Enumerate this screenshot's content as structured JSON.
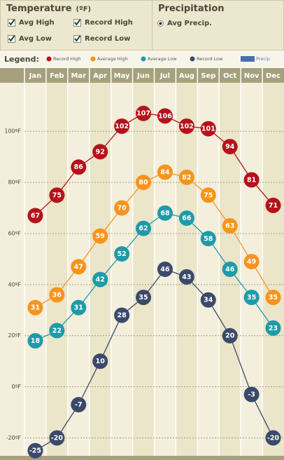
{
  "controls": {
    "temperature_title": "Temperature",
    "temperature_unit": "(ºF)",
    "checkboxes": [
      "Avg High",
      "Record High",
      "Avg Low",
      "Record Low"
    ],
    "precip_title": "Precipitation",
    "precip_option": "Avg Precip."
  },
  "chart_data": {
    "type": "line",
    "legend_title": "Legend:",
    "precip_label": "Precip",
    "categories": [
      "Jan",
      "Feb",
      "Mar",
      "Apr",
      "May",
      "Jun",
      "Jul",
      "Aug",
      "Sep",
      "Oct",
      "Nov",
      "Dec"
    ],
    "series": [
      {
        "name": "Record High",
        "color": "#b5121b",
        "values": [
          67,
          75,
          86,
          92,
          102,
          107,
          106,
          102,
          101,
          94,
          81,
          71
        ]
      },
      {
        "name": "Average High",
        "color": "#f7941d",
        "values": [
          31,
          36,
          47,
          59,
          70,
          80,
          84,
          82,
          75,
          63,
          49,
          35
        ]
      },
      {
        "name": "Average Low",
        "color": "#1f9aa8",
        "values": [
          18,
          22,
          31,
          42,
          52,
          62,
          68,
          66,
          58,
          46,
          35,
          23
        ]
      },
      {
        "name": "Record Low",
        "color": "#3b4a6b",
        "values": [
          -25,
          -20,
          -7,
          10,
          28,
          35,
          46,
          43,
          34,
          20,
          -3,
          -20
        ]
      }
    ],
    "ylim": [
      -27,
      119
    ],
    "yticks": [
      {
        "value": 100,
        "label": "100ºF"
      },
      {
        "value": 80,
        "label": "80ºF"
      },
      {
        "value": 60,
        "label": "60ºF"
      },
      {
        "value": 40,
        "label": "40ºF"
      },
      {
        "value": 20,
        "label": "20ºF"
      },
      {
        "value": 0,
        "label": "0ºF"
      },
      {
        "value": -20,
        "label": "-20ºF"
      }
    ],
    "grid": true
  }
}
